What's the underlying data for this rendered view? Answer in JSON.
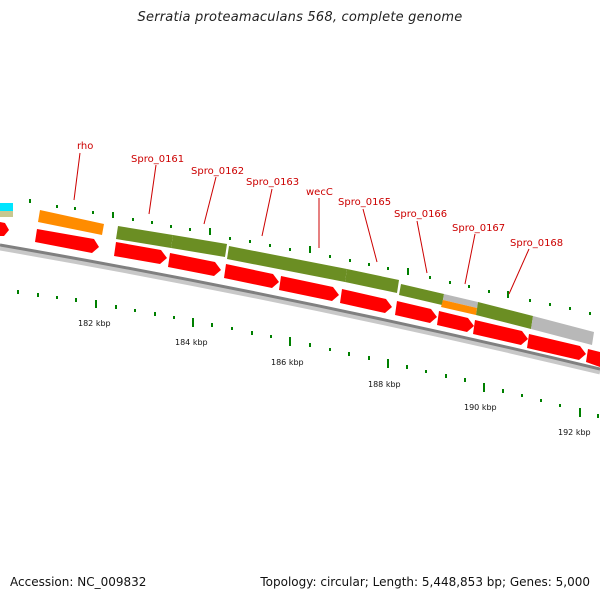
{
  "title": "Serratia proteamaculans 568, complete genome",
  "accession": "Accession: NC_009832",
  "summary": "Topology: circular; Length: 5,448,853 bp; Genes: 5,000",
  "colors": {
    "forward_cds": "#ff0000",
    "gene_green": "#6b8e23",
    "gene_orange": "#ff8c00",
    "gene_gray": "#b8b8b8",
    "gene_cyan": "#00e5ff",
    "label": "#cc0000",
    "tick": "#008000",
    "backbone": "#808080"
  },
  "gene_labels": [
    {
      "id": "rho",
      "text": "rho"
    },
    {
      "id": "spro0161",
      "text": "Spro_0161"
    },
    {
      "id": "spro0162",
      "text": "Spro_0162"
    },
    {
      "id": "spro0163",
      "text": "Spro_0163"
    },
    {
      "id": "wecC",
      "text": "wecC"
    },
    {
      "id": "spro0165",
      "text": "Spro_0165"
    },
    {
      "id": "spro0166",
      "text": "Spro_0166"
    },
    {
      "id": "spro0167",
      "text": "Spro_0167"
    },
    {
      "id": "spro0168",
      "text": "Spro_0168"
    }
  ],
  "scale_labels": [
    "182 kbp",
    "184 kbp",
    "186 kbp",
    "188 kbp",
    "190 kbp",
    "192 kbp"
  ]
}
